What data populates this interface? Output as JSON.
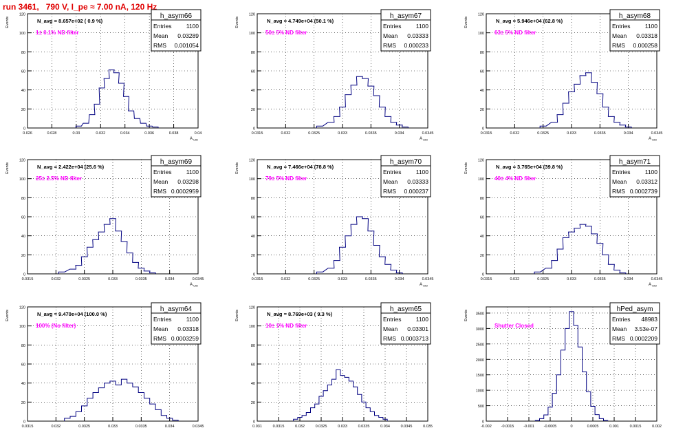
{
  "run_title": "run 3461,   790 V, I_pe ≈ 7.00 nA, 120 Hz",
  "colors": {
    "hist": "#000080",
    "annotation": "#ff00ff",
    "title_red": "#e00000",
    "grid": "#000000"
  },
  "chart_data": [
    {
      "type": "histogram",
      "name": "h_asym66",
      "nav": "N_avg = 8.657e+02 ( 0.9 %)",
      "filter": "1± 0.1% ND filter",
      "stats": {
        "entries": "1100",
        "mean": "0.03289",
        "rms": "0.001054"
      },
      "xlim": [
        0.026,
        0.04
      ],
      "xticks": [
        "0.026",
        "0.028",
        "0.03",
        "0.032",
        "0.034",
        "0.036",
        "0.038",
        "0.04"
      ],
      "ylim": [
        0,
        120
      ],
      "yticks": [
        "0",
        "20",
        "40",
        "60",
        "80",
        "100",
        "120"
      ],
      "ylabel": "Events",
      "xlabel": "A_UID",
      "x": [
        0.0302,
        0.0308,
        0.0313,
        0.0317,
        0.0321,
        0.0325,
        0.0329,
        0.0333,
        0.0337,
        0.0341,
        0.0345,
        0.035,
        0.0355,
        0.036,
        0.0365
      ],
      "y": [
        2,
        5,
        14,
        25,
        42,
        52,
        61,
        58,
        47,
        33,
        18,
        10,
        5,
        2,
        1
      ]
    },
    {
      "type": "histogram",
      "name": "h_asym67",
      "nav": "N_avg = 4.749e+04 (50.1 %)",
      "filter": "50± 5% ND filter",
      "stats": {
        "entries": "1100",
        "mean": "0.03333",
        "rms": "0.000233"
      },
      "xlim": [
        0.0315,
        0.0345
      ],
      "xticks": [
        "0.0315",
        "0.032",
        "0.0325",
        "0.033",
        "0.0335",
        "0.034",
        "0.0345"
      ],
      "ylim": [
        0,
        120
      ],
      "yticks": [
        "0",
        "20",
        "40",
        "60",
        "80",
        "100",
        "120"
      ],
      "ylabel": "Events",
      "xlabel": "A_UID",
      "x": [
        0.0326,
        0.0328,
        0.0329,
        0.033,
        0.0331,
        0.0332,
        0.0333,
        0.0334,
        0.0335,
        0.0336,
        0.0337,
        0.0338,
        0.0339,
        0.034,
        0.0341
      ],
      "y": [
        2,
        6,
        12,
        22,
        35,
        45,
        54,
        52,
        44,
        34,
        22,
        12,
        6,
        3,
        1
      ]
    },
    {
      "type": "histogram",
      "name": "h_asym68",
      "nav": "N_avg = 5.946e+04 (62.8 %)",
      "filter": "63± 5% ND filter",
      "stats": {
        "entries": "1100",
        "mean": "0.03318",
        "rms": "0.000258"
      },
      "xlim": [
        0.0315,
        0.0345
      ],
      "xticks": [
        "0.0315",
        "0.032",
        "0.0325",
        "0.033",
        "0.0335",
        "0.034",
        "0.0345"
      ],
      "ylim": [
        0,
        120
      ],
      "yticks": [
        "0",
        "20",
        "40",
        "60",
        "80",
        "100",
        "120"
      ],
      "ylabel": "Events",
      "xlabel": "A_UID",
      "x": [
        0.0325,
        0.0327,
        0.0328,
        0.0329,
        0.033,
        0.0331,
        0.0332,
        0.0333,
        0.0334,
        0.0335,
        0.0336,
        0.0337,
        0.0338,
        0.0339,
        0.034
      ],
      "y": [
        2,
        6,
        14,
        26,
        38,
        46,
        55,
        58,
        48,
        36,
        22,
        12,
        6,
        3,
        1
      ]
    },
    {
      "type": "histogram",
      "name": "h_asym69",
      "nav": "N_avg = 2.422e+04 (25.6 %)",
      "filter": "25± 2.5% ND filter",
      "stats": {
        "entries": "1100",
        "mean": "0.03298",
        "rms": "0.0002959"
      },
      "xlim": [
        0.0315,
        0.0345
      ],
      "xticks": [
        "0.0315",
        "0.032",
        "0.0325",
        "0.033",
        "0.0335",
        "0.034",
        "0.0345"
      ],
      "ylim": [
        0,
        120
      ],
      "yticks": [
        "0",
        "20",
        "40",
        "60",
        "80",
        "100",
        "120"
      ],
      "ylabel": "Events",
      "xlabel": "A_UID",
      "x": [
        0.0321,
        0.0323,
        0.0324,
        0.0325,
        0.0326,
        0.0327,
        0.0328,
        0.0329,
        0.033,
        0.0331,
        0.0332,
        0.0333,
        0.0334,
        0.0335,
        0.0336,
        0.0337
      ],
      "y": [
        2,
        5,
        9,
        18,
        28,
        36,
        44,
        52,
        58,
        45,
        34,
        22,
        12,
        6,
        3,
        1
      ]
    },
    {
      "type": "histogram",
      "name": "h_asym70",
      "nav": "N_avg = 7.466e+04 (78.8 %)",
      "filter": "79± 5% ND filter",
      "stats": {
        "entries": "1100",
        "mean": "0.03333",
        "rms": "0.000237"
      },
      "xlim": [
        0.0315,
        0.0345
      ],
      "xticks": [
        "0.0315",
        "0.032",
        "0.0325",
        "0.033",
        "0.0335",
        "0.034",
        "0.0345"
      ],
      "ylim": [
        0,
        120
      ],
      "yticks": [
        "0",
        "20",
        "40",
        "60",
        "80",
        "100",
        "120"
      ],
      "ylabel": "Events",
      "xlabel": "A_UID",
      "x": [
        0.0326,
        0.0328,
        0.0329,
        0.033,
        0.0331,
        0.0332,
        0.0333,
        0.0334,
        0.0335,
        0.0336,
        0.0337,
        0.0338,
        0.0339,
        0.034
      ],
      "y": [
        2,
        6,
        14,
        28,
        40,
        52,
        60,
        58,
        45,
        30,
        18,
        10,
        4,
        1
      ]
    },
    {
      "type": "histogram",
      "name": "h_asym71",
      "nav": "N_avg = 3.765e+04 (39.8 %)",
      "filter": "40± 4% ND filter",
      "stats": {
        "entries": "1100",
        "mean": "0.03312",
        "rms": "0.0002739"
      },
      "xlim": [
        0.0315,
        0.0345
      ],
      "xticks": [
        "0.0315",
        "0.032",
        "0.0325",
        "0.033",
        "0.0335",
        "0.034",
        "0.0345"
      ],
      "ylim": [
        0,
        120
      ],
      "yticks": [
        "0",
        "20",
        "40",
        "60",
        "80",
        "100",
        "120"
      ],
      "ylabel": "Events",
      "xlabel": "A_UID",
      "x": [
        0.0324,
        0.0326,
        0.0327,
        0.0328,
        0.0329,
        0.033,
        0.0331,
        0.0332,
        0.0333,
        0.0334,
        0.0335,
        0.0336,
        0.0337,
        0.0338,
        0.0339
      ],
      "y": [
        2,
        6,
        14,
        26,
        38,
        44,
        48,
        52,
        50,
        42,
        32,
        20,
        10,
        4,
        1
      ]
    },
    {
      "type": "histogram",
      "name": "h_asym64",
      "nav": "N_avg = 9.470e+04 (100.0 %)",
      "filter": "100% (No filter)",
      "stats": {
        "entries": "1100",
        "mean": "0.03318",
        "rms": "0.0003259"
      },
      "xlim": [
        0.0315,
        0.0345
      ],
      "xticks": [
        "0.0315",
        "0.032",
        "0.0325",
        "0.033",
        "0.0335",
        "0.034",
        "0.0345"
      ],
      "ylim": [
        0,
        120
      ],
      "yticks": [
        "0",
        "20",
        "40",
        "60",
        "80",
        "100",
        "120"
      ],
      "ylabel": "Events",
      "xlabel": "A_UID",
      "x": [
        0.0322,
        0.0323,
        0.0324,
        0.0325,
        0.0326,
        0.0327,
        0.0328,
        0.0329,
        0.033,
        0.0331,
        0.0332,
        0.0333,
        0.0334,
        0.0335,
        0.0336,
        0.0337,
        0.0338,
        0.0339,
        0.034,
        0.0341
      ],
      "y": [
        3,
        5,
        10,
        16,
        24,
        30,
        35,
        40,
        42,
        38,
        44,
        40,
        36,
        30,
        24,
        18,
        12,
        6,
        3,
        1
      ]
    },
    {
      "type": "histogram",
      "name": "h_asym65",
      "nav": "N_avg = 8.769e+03 ( 9.3 %)",
      "filter": "10± 1% ND filter",
      "stats": {
        "entries": "1100",
        "mean": "0.03301",
        "rms": "0.0003713"
      },
      "xlim": [
        0.031,
        0.035
      ],
      "xticks": [
        "0.031",
        "0.0315",
        "0.032",
        "0.0325",
        "0.033",
        "0.0335",
        "0.034",
        "0.0345",
        "0.035"
      ],
      "ylim": [
        0,
        120
      ],
      "yticks": [
        "0",
        "20",
        "40",
        "60",
        "80",
        "100",
        "120"
      ],
      "ylabel": "Events",
      "xlabel": "A_UID",
      "x": [
        0.0319,
        0.032,
        0.0321,
        0.0322,
        0.0323,
        0.0324,
        0.0325,
        0.0326,
        0.0327,
        0.0328,
        0.0329,
        0.033,
        0.0331,
        0.0332,
        0.0333,
        0.0334,
        0.0335,
        0.0336,
        0.0337,
        0.0338,
        0.0339,
        0.034
      ],
      "y": [
        2,
        4,
        6,
        9,
        14,
        18,
        26,
        32,
        38,
        44,
        54,
        48,
        46,
        42,
        36,
        28,
        20,
        14,
        10,
        6,
        4,
        2
      ]
    },
    {
      "type": "histogram",
      "name": "hPed_asym",
      "nav": "",
      "filter": "Shutter Closed",
      "stats": {
        "entries": "48983",
        "mean": "3.53e-07",
        "rms": "0.0002209"
      },
      "xlim": [
        -0.002,
        0.002
      ],
      "xticks": [
        "-0.002",
        "-0.0015",
        "-0.001",
        "-0.0005",
        "0",
        "0.0005",
        "0.001",
        "0.0015",
        "0.002"
      ],
      "ylim": [
        0,
        3700
      ],
      "yticks": [
        "0",
        "500",
        "1000",
        "1500",
        "2000",
        "2500",
        "3000",
        "3500"
      ],
      "ylabel": "Events",
      "xlabel": "",
      "x": [
        -0.0008,
        -0.0007,
        -0.0006,
        -0.0005,
        -0.0004,
        -0.0003,
        -0.0002,
        -0.0001,
        0.0,
        0.0001,
        0.0002,
        0.0003,
        0.0004,
        0.0005,
        0.0006,
        0.0007,
        0.0008
      ],
      "y": [
        20,
        80,
        200,
        450,
        900,
        1500,
        2300,
        3000,
        3550,
        3100,
        2400,
        1600,
        950,
        480,
        210,
        80,
        20
      ]
    }
  ]
}
